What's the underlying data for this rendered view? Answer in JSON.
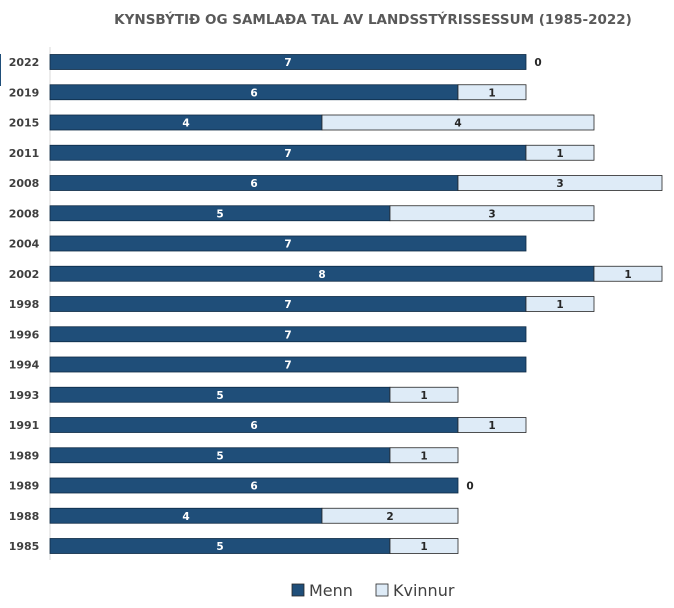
{
  "chart_data": {
    "type": "bar",
    "orientation": "horizontal",
    "stacked": true,
    "title": "KYNSBÝTIÐ OG SAMLAÐA TAL AV LANDSSTÝRISSESSUM (1985-2022)",
    "categories": [
      "2022",
      "2019",
      "2015",
      "2011",
      "2008",
      "2008",
      "2004",
      "2002",
      "1998",
      "1996",
      "1994",
      "1993",
      "1991",
      "1989",
      "1989",
      "1988",
      "1985"
    ],
    "series": [
      {
        "name": "Menn",
        "values": [
          7,
          6,
          4,
          7,
          6,
          5,
          7,
          8,
          7,
          7,
          7,
          5,
          6,
          5,
          6,
          4,
          5
        ],
        "color": "#1f4e79"
      },
      {
        "name": "Kvinnur",
        "values": [
          0,
          1,
          4,
          1,
          3,
          3,
          null,
          1,
          1,
          null,
          null,
          1,
          1,
          1,
          0,
          2,
          1
        ],
        "color": "#deebf7"
      }
    ],
    "xlim": [
      0,
      9
    ],
    "legend": "bottom"
  }
}
